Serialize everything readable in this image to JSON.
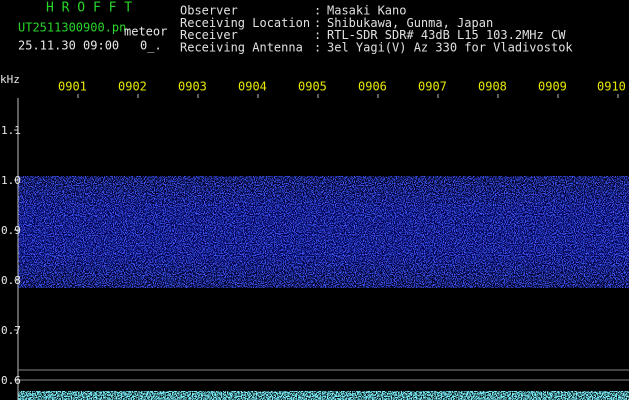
{
  "header": {
    "title": "H R O F F T",
    "file": "UT2511300900.pn",
    "tag": "meteor",
    "datetime": "25.11.30 09:00",
    "index": "0_."
  },
  "info": [
    {
      "label": "Observer",
      "separator": ":",
      "value": "Masaki Kano"
    },
    {
      "label": "Receiving Location",
      "separator": ":",
      "value": "Shibukawa, Gunma, Japan"
    },
    {
      "label": "Receiver",
      "separator": ":",
      "value": "RTL-SDR SDR# 43dB L15 103.2MHz CW"
    },
    {
      "label": "Receiving Antenna",
      "separator": ":",
      "value": "3el Yagi(V) Az 330 for Vladivostok"
    }
  ],
  "y_axis": {
    "unit": "kHz",
    "ticks": [
      "1.1",
      "1.0",
      "0.9",
      "0.8",
      "0.7",
      "0.6"
    ]
  },
  "x_axis": {
    "labels": [
      "0901",
      "0902",
      "0903",
      "0904",
      "0905",
      "0906",
      "0907",
      "0908",
      "0909",
      "0910"
    ]
  }
}
